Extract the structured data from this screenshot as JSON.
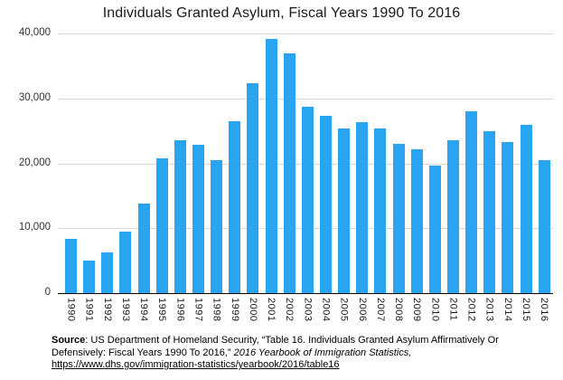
{
  "title": "Individuals Granted Asylum, Fiscal Years 1990 To 2016",
  "chart_data": {
    "type": "bar",
    "title": "Individuals Granted Asylum, Fiscal Years 1990 To 2016",
    "categories": [
      "1990",
      "1991",
      "1992",
      "1993",
      "1994",
      "1995",
      "1996",
      "1997",
      "1998",
      "1999",
      "2000",
      "2001",
      "2002",
      "2003",
      "2004",
      "2005",
      "2006",
      "2007",
      "2008",
      "2009",
      "2010",
      "2011",
      "2012",
      "2013",
      "2014",
      "2015",
      "2016"
    ],
    "values": [
      8400,
      5000,
      6300,
      9500,
      13800,
      20700,
      23500,
      22900,
      20500,
      26500,
      32400,
      39200,
      36900,
      28700,
      27300,
      25300,
      26300,
      25400,
      23000,
      22200,
      19700,
      23500,
      28000,
      25000,
      23300,
      25900,
      20500
    ],
    "xlabel": "",
    "ylabel": "",
    "ylim": [
      0,
      40000
    ],
    "yticks": [
      0,
      10000,
      20000,
      30000,
      40000
    ],
    "y_tick_labels": [
      "0",
      "10,000",
      "20,000",
      "30,000",
      "40,000"
    ],
    "x_tick_rotation": 90,
    "grid": true,
    "legend": false,
    "bar_color": "#29a4f0",
    "gridline_color": "#d9d9d9",
    "baseline_color": "#000000"
  },
  "source": {
    "label": "Source",
    "text": ": US Department of Homeland Security, “Table 16. Individuals Granted Asylum Affirmatively Or Defensively: Fiscal Years 1990 To 2016,”  ",
    "publication": "2016 Yearbook of Immigration Statistics,",
    "link": "https://www.dhs.gov/immigration-statistics/yearbook/2016/table16"
  }
}
